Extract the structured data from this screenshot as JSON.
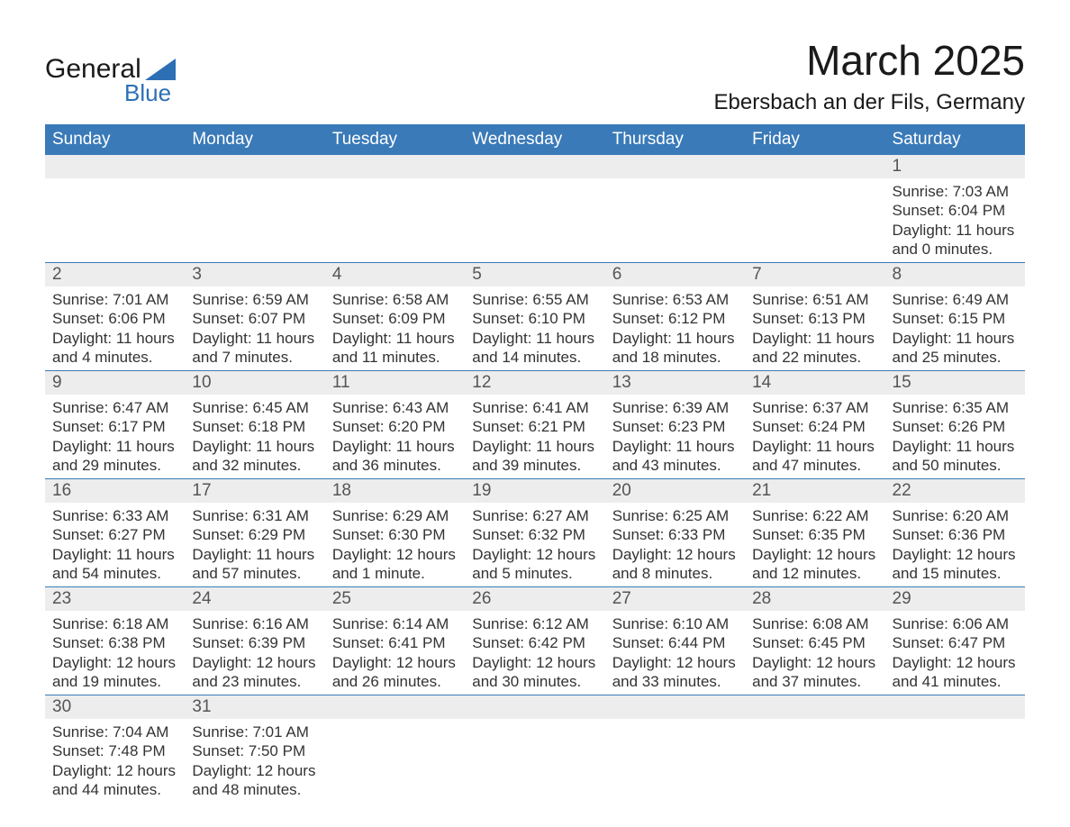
{
  "logo": {
    "text_a": "General",
    "text_b": "Blue",
    "triangle_color": "#2d6fb5"
  },
  "title": "March 2025",
  "location": "Ebersbach an der Fils, Germany",
  "colors": {
    "header_bg": "#3a7ab8",
    "header_text": "#ffffff",
    "daynum_bg": "#ededed",
    "daynum_text": "#555555",
    "body_text": "#333333",
    "row_border": "#3a7ab8",
    "page_bg": "#ffffff"
  },
  "typography": {
    "title_fontsize": 46,
    "location_fontsize": 24,
    "dayhead_fontsize": 19,
    "daynum_fontsize": 19,
    "cell_fontsize": 17,
    "font_family": "Arial"
  },
  "day_names": [
    "Sunday",
    "Monday",
    "Tuesday",
    "Wednesday",
    "Thursday",
    "Friday",
    "Saturday"
  ],
  "weeks": [
    [
      {
        "blank": true
      },
      {
        "blank": true
      },
      {
        "blank": true
      },
      {
        "blank": true
      },
      {
        "blank": true
      },
      {
        "blank": true
      },
      {
        "day": "1",
        "sunrise": "Sunrise: 7:03 AM",
        "sunset": "Sunset: 6:04 PM",
        "daylight1": "Daylight: 11 hours",
        "daylight2": "and 0 minutes."
      }
    ],
    [
      {
        "day": "2",
        "sunrise": "Sunrise: 7:01 AM",
        "sunset": "Sunset: 6:06 PM",
        "daylight1": "Daylight: 11 hours",
        "daylight2": "and 4 minutes."
      },
      {
        "day": "3",
        "sunrise": "Sunrise: 6:59 AM",
        "sunset": "Sunset: 6:07 PM",
        "daylight1": "Daylight: 11 hours",
        "daylight2": "and 7 minutes."
      },
      {
        "day": "4",
        "sunrise": "Sunrise: 6:58 AM",
        "sunset": "Sunset: 6:09 PM",
        "daylight1": "Daylight: 11 hours",
        "daylight2": "and 11 minutes."
      },
      {
        "day": "5",
        "sunrise": "Sunrise: 6:55 AM",
        "sunset": "Sunset: 6:10 PM",
        "daylight1": "Daylight: 11 hours",
        "daylight2": "and 14 minutes."
      },
      {
        "day": "6",
        "sunrise": "Sunrise: 6:53 AM",
        "sunset": "Sunset: 6:12 PM",
        "daylight1": "Daylight: 11 hours",
        "daylight2": "and 18 minutes."
      },
      {
        "day": "7",
        "sunrise": "Sunrise: 6:51 AM",
        "sunset": "Sunset: 6:13 PM",
        "daylight1": "Daylight: 11 hours",
        "daylight2": "and 22 minutes."
      },
      {
        "day": "8",
        "sunrise": "Sunrise: 6:49 AM",
        "sunset": "Sunset: 6:15 PM",
        "daylight1": "Daylight: 11 hours",
        "daylight2": "and 25 minutes."
      }
    ],
    [
      {
        "day": "9",
        "sunrise": "Sunrise: 6:47 AM",
        "sunset": "Sunset: 6:17 PM",
        "daylight1": "Daylight: 11 hours",
        "daylight2": "and 29 minutes."
      },
      {
        "day": "10",
        "sunrise": "Sunrise: 6:45 AM",
        "sunset": "Sunset: 6:18 PM",
        "daylight1": "Daylight: 11 hours",
        "daylight2": "and 32 minutes."
      },
      {
        "day": "11",
        "sunrise": "Sunrise: 6:43 AM",
        "sunset": "Sunset: 6:20 PM",
        "daylight1": "Daylight: 11 hours",
        "daylight2": "and 36 minutes."
      },
      {
        "day": "12",
        "sunrise": "Sunrise: 6:41 AM",
        "sunset": "Sunset: 6:21 PM",
        "daylight1": "Daylight: 11 hours",
        "daylight2": "and 39 minutes."
      },
      {
        "day": "13",
        "sunrise": "Sunrise: 6:39 AM",
        "sunset": "Sunset: 6:23 PM",
        "daylight1": "Daylight: 11 hours",
        "daylight2": "and 43 minutes."
      },
      {
        "day": "14",
        "sunrise": "Sunrise: 6:37 AM",
        "sunset": "Sunset: 6:24 PM",
        "daylight1": "Daylight: 11 hours",
        "daylight2": "and 47 minutes."
      },
      {
        "day": "15",
        "sunrise": "Sunrise: 6:35 AM",
        "sunset": "Sunset: 6:26 PM",
        "daylight1": "Daylight: 11 hours",
        "daylight2": "and 50 minutes."
      }
    ],
    [
      {
        "day": "16",
        "sunrise": "Sunrise: 6:33 AM",
        "sunset": "Sunset: 6:27 PM",
        "daylight1": "Daylight: 11 hours",
        "daylight2": "and 54 minutes."
      },
      {
        "day": "17",
        "sunrise": "Sunrise: 6:31 AM",
        "sunset": "Sunset: 6:29 PM",
        "daylight1": "Daylight: 11 hours",
        "daylight2": "and 57 minutes."
      },
      {
        "day": "18",
        "sunrise": "Sunrise: 6:29 AM",
        "sunset": "Sunset: 6:30 PM",
        "daylight1": "Daylight: 12 hours",
        "daylight2": "and 1 minute."
      },
      {
        "day": "19",
        "sunrise": "Sunrise: 6:27 AM",
        "sunset": "Sunset: 6:32 PM",
        "daylight1": "Daylight: 12 hours",
        "daylight2": "and 5 minutes."
      },
      {
        "day": "20",
        "sunrise": "Sunrise: 6:25 AM",
        "sunset": "Sunset: 6:33 PM",
        "daylight1": "Daylight: 12 hours",
        "daylight2": "and 8 minutes."
      },
      {
        "day": "21",
        "sunrise": "Sunrise: 6:22 AM",
        "sunset": "Sunset: 6:35 PM",
        "daylight1": "Daylight: 12 hours",
        "daylight2": "and 12 minutes."
      },
      {
        "day": "22",
        "sunrise": "Sunrise: 6:20 AM",
        "sunset": "Sunset: 6:36 PM",
        "daylight1": "Daylight: 12 hours",
        "daylight2": "and 15 minutes."
      }
    ],
    [
      {
        "day": "23",
        "sunrise": "Sunrise: 6:18 AM",
        "sunset": "Sunset: 6:38 PM",
        "daylight1": "Daylight: 12 hours",
        "daylight2": "and 19 minutes."
      },
      {
        "day": "24",
        "sunrise": "Sunrise: 6:16 AM",
        "sunset": "Sunset: 6:39 PM",
        "daylight1": "Daylight: 12 hours",
        "daylight2": "and 23 minutes."
      },
      {
        "day": "25",
        "sunrise": "Sunrise: 6:14 AM",
        "sunset": "Sunset: 6:41 PM",
        "daylight1": "Daylight: 12 hours",
        "daylight2": "and 26 minutes."
      },
      {
        "day": "26",
        "sunrise": "Sunrise: 6:12 AM",
        "sunset": "Sunset: 6:42 PM",
        "daylight1": "Daylight: 12 hours",
        "daylight2": "and 30 minutes."
      },
      {
        "day": "27",
        "sunrise": "Sunrise: 6:10 AM",
        "sunset": "Sunset: 6:44 PM",
        "daylight1": "Daylight: 12 hours",
        "daylight2": "and 33 minutes."
      },
      {
        "day": "28",
        "sunrise": "Sunrise: 6:08 AM",
        "sunset": "Sunset: 6:45 PM",
        "daylight1": "Daylight: 12 hours",
        "daylight2": "and 37 minutes."
      },
      {
        "day": "29",
        "sunrise": "Sunrise: 6:06 AM",
        "sunset": "Sunset: 6:47 PM",
        "daylight1": "Daylight: 12 hours",
        "daylight2": "and 41 minutes."
      }
    ],
    [
      {
        "day": "30",
        "sunrise": "Sunrise: 7:04 AM",
        "sunset": "Sunset: 7:48 PM",
        "daylight1": "Daylight: 12 hours",
        "daylight2": "and 44 minutes."
      },
      {
        "day": "31",
        "sunrise": "Sunrise: 7:01 AM",
        "sunset": "Sunset: 7:50 PM",
        "daylight1": "Daylight: 12 hours",
        "daylight2": "and 48 minutes."
      },
      {
        "blank": true
      },
      {
        "blank": true
      },
      {
        "blank": true
      },
      {
        "blank": true
      },
      {
        "blank": true
      }
    ]
  ]
}
